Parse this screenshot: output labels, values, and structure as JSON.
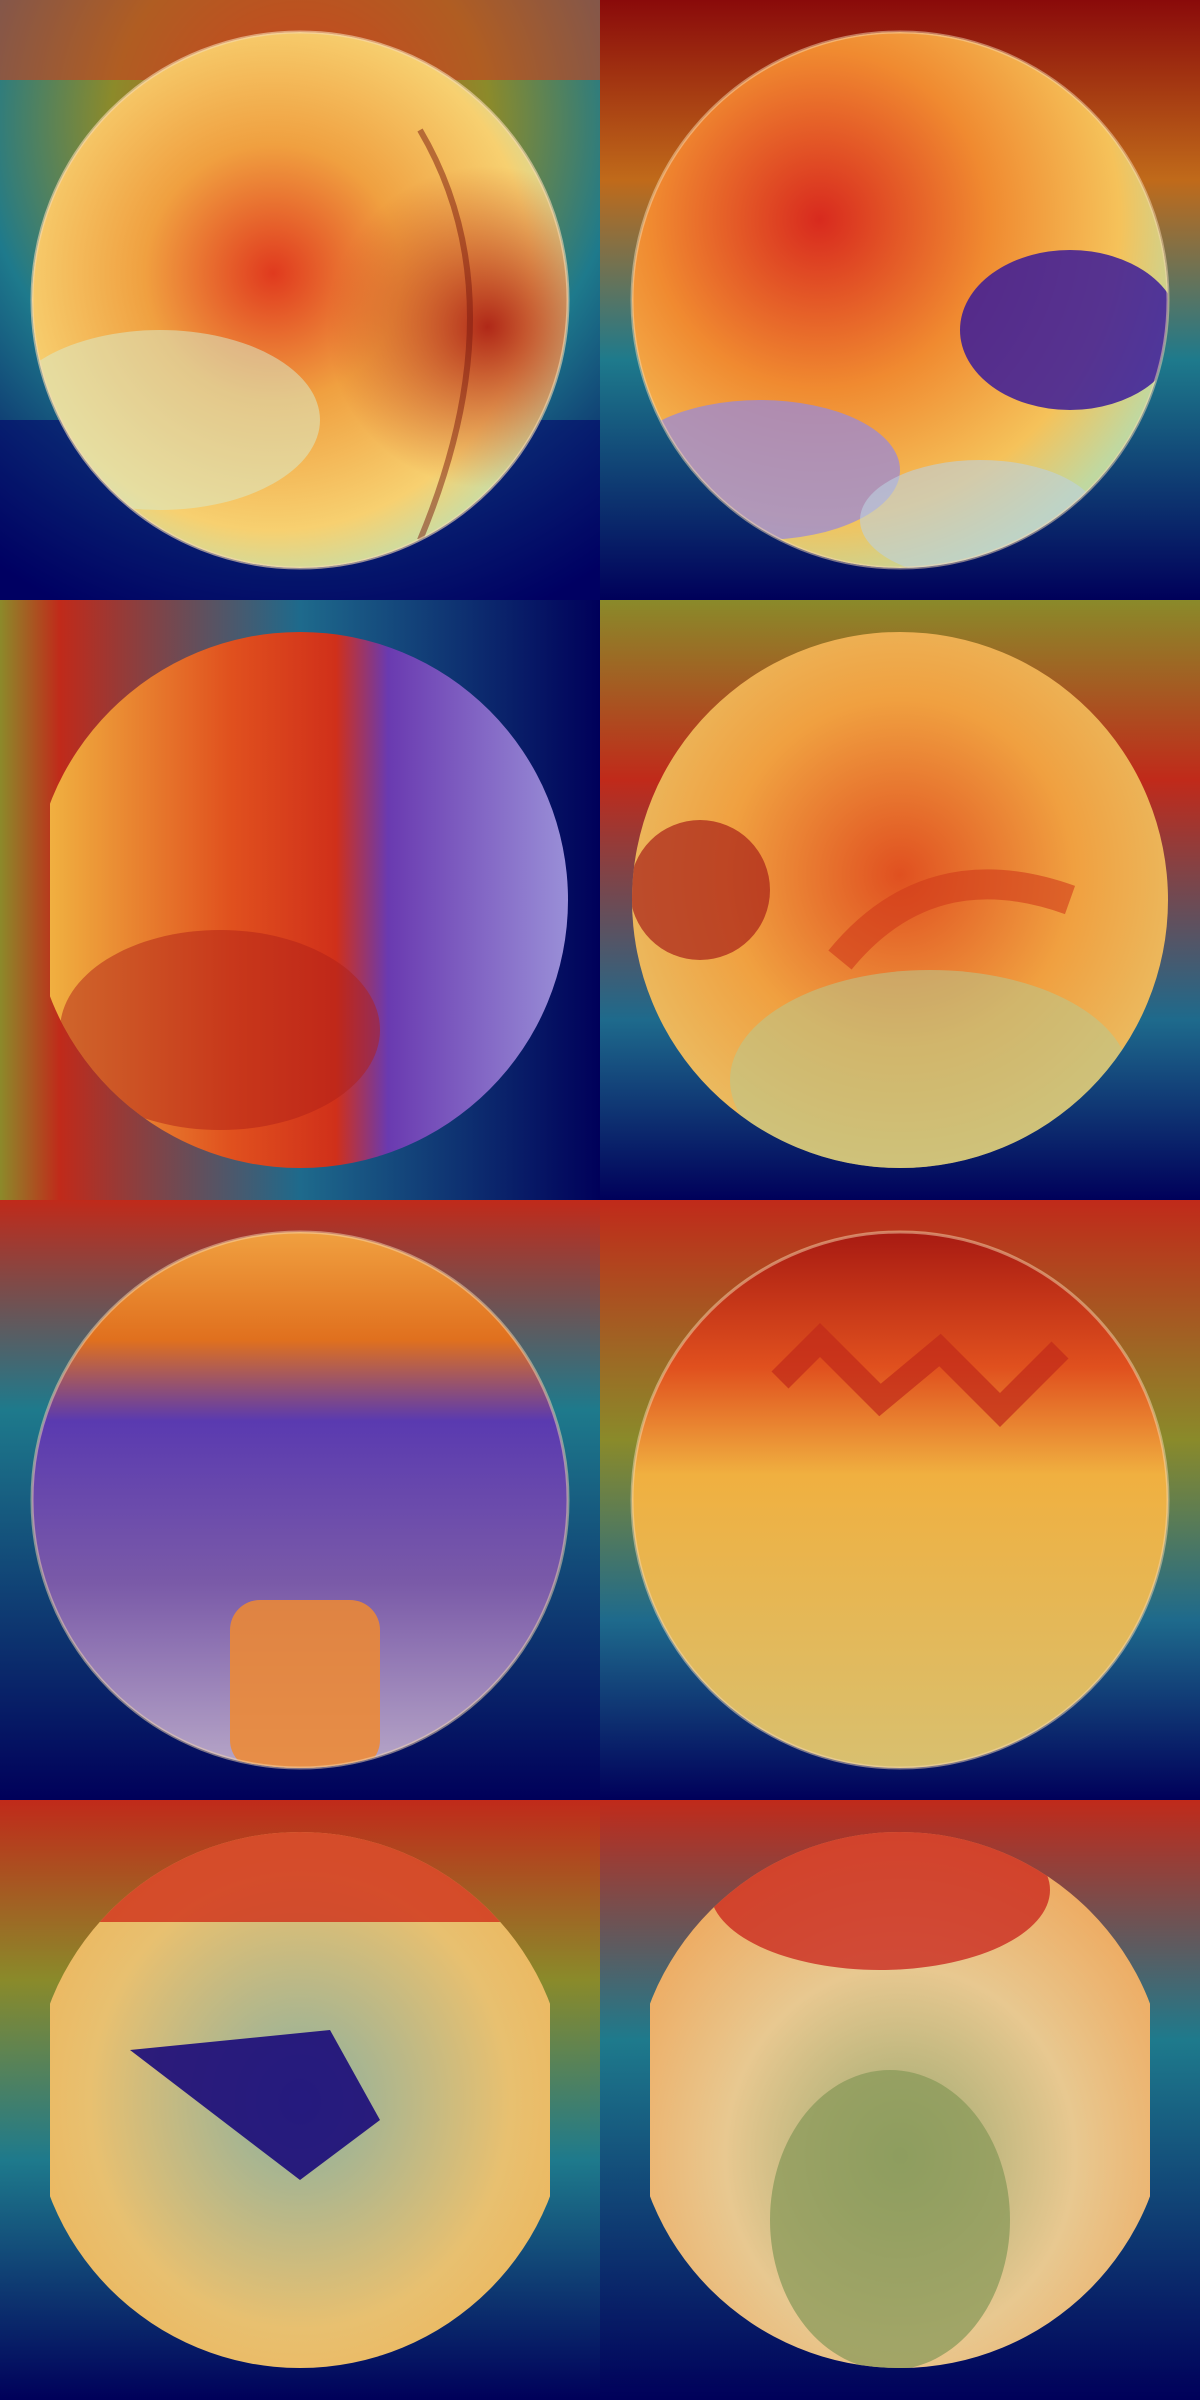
{
  "panels": [
    {
      "id": "r1c1",
      "type": "endoscopy-heatmap",
      "lens": "circle"
    },
    {
      "id": "r1c2",
      "type": "endoscopy-heatmap",
      "lens": "circle"
    },
    {
      "id": "r2c1",
      "type": "endoscopy-heatmap",
      "lens": "clipped-circle"
    },
    {
      "id": "r2c2",
      "type": "endoscopy-heatmap",
      "lens": "clipped-circle"
    },
    {
      "id": "r3c1",
      "type": "endoscopy-heatmap",
      "lens": "circle"
    },
    {
      "id": "r3c2",
      "type": "endoscopy-heatmap",
      "lens": "circle"
    },
    {
      "id": "r4c1",
      "type": "endoscopy-heatmap",
      "lens": "clipped-circle"
    },
    {
      "id": "r4c2",
      "type": "endoscopy-heatmap",
      "lens": "clipped-circle"
    }
  ],
  "colors": {
    "jet_dark_blue": "#00005a",
    "jet_blue": "#0a1e9a",
    "jet_teal": "#1e8c8c",
    "jet_yellow_green": "#8c9a2a",
    "jet_yellow": "#f2c23a",
    "jet_orange": "#f07a28",
    "jet_red": "#d22a1e",
    "jet_dark_red": "#8a0a0a",
    "overlay_purple": "#6a4aa8"
  }
}
